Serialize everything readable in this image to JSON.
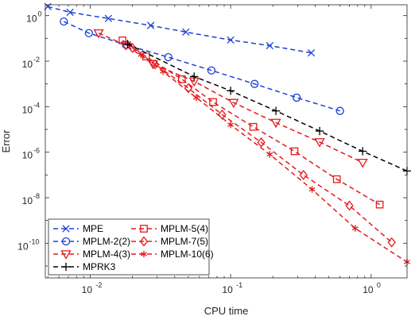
{
  "chart_data": {
    "type": "line",
    "title": "",
    "xlabel": "CPU time",
    "ylabel": "Error",
    "xscale": "log",
    "yscale": "log",
    "xlim": [
      0.0048,
      1.8
    ],
    "ylim": [
      3e-12,
      3
    ],
    "grid": false,
    "legend_position": "bottom-left",
    "legend_columns": 2,
    "x_ticks": [
      {
        "value": 0.01,
        "base": "10",
        "exp": "-2"
      },
      {
        "value": 0.1,
        "base": "10",
        "exp": "-1"
      },
      {
        "value": 1,
        "base": "10",
        "exp": "0"
      }
    ],
    "y_ticks": [
      {
        "value": 1,
        "base": "10",
        "exp": "0"
      },
      {
        "value": 0.01,
        "base": "10",
        "exp": "-2"
      },
      {
        "value": 0.0001,
        "base": "10",
        "exp": "-4"
      },
      {
        "value": 1e-06,
        "base": "10",
        "exp": "-6"
      },
      {
        "value": 1e-08,
        "base": "10",
        "exp": "-8"
      },
      {
        "value": 1e-10,
        "base": "10",
        "exp": "-10"
      }
    ],
    "series": [
      {
        "name": "MPE",
        "color": "#1f3fd6",
        "marker": "x",
        "x": [
          0.005,
          0.0072,
          0.0135,
          0.027,
          0.048,
          0.1,
          0.19,
          0.375
        ],
        "y": [
          2.5,
          1.4,
          0.75,
          0.37,
          0.19,
          0.085,
          0.048,
          0.023
        ]
      },
      {
        "name": "MPLM-2(2)",
        "color": "#1f3fd6",
        "marker": "circle",
        "x": [
          0.0065,
          0.0098,
          0.018,
          0.036,
          0.073,
          0.148,
          0.295,
          0.6
        ],
        "y": [
          0.55,
          0.17,
          0.052,
          0.015,
          0.0039,
          0.001,
          0.00025,
          6.5e-05
        ]
      },
      {
        "name": "MPLM-4(3)",
        "color": "#e41a1c",
        "marker": "triangle-down",
        "x": [
          0.0115,
          0.018,
          0.028,
          0.055,
          0.105,
          0.21,
          0.43,
          0.87
        ],
        "y": [
          0.17,
          0.05,
          0.0075,
          0.0013,
          0.00015,
          2e-05,
          2.8e-06,
          3.5e-07
        ]
      },
      {
        "name": "MPLM-5(4)",
        "color": "#e41a1c",
        "marker": "square",
        "x": [
          0.017,
          0.025,
          0.045,
          0.075,
          0.145,
          0.285,
          0.57,
          1.15
        ],
        "y": [
          0.082,
          0.016,
          0.0016,
          0.00016,
          1.3e-05,
          1.1e-06,
          6.5e-08,
          5e-09
        ]
      },
      {
        "name": "MPLM-7(5)",
        "color": "#e41a1c",
        "marker": "diamond",
        "x": [
          0.02,
          0.029,
          0.05,
          0.087,
          0.165,
          0.33,
          0.7,
          1.4
        ],
        "y": [
          0.038,
          0.0073,
          0.00065,
          4.5e-05,
          2.7e-06,
          1e-07,
          4.5e-09,
          1.1e-10
        ]
      },
      {
        "name": "MPLM-10(6)",
        "color": "#e41a1c",
        "marker": "asterisk",
        "x": [
          0.023,
          0.033,
          0.057,
          0.1,
          0.19,
          0.38,
          0.77,
          1.8
        ],
        "y": [
          0.019,
          0.0035,
          0.00025,
          1.6e-05,
          8e-07,
          2.3e-08,
          4.5e-10,
          1.5e-11
        ]
      },
      {
        "name": "MPRK3",
        "color": "#000000",
        "marker": "plus",
        "x": [
          0.0185,
          0.055,
          0.1,
          0.21,
          0.43,
          0.87,
          1.8
        ],
        "y": [
          0.057,
          0.0021,
          0.0005,
          6.5e-05,
          8.5e-06,
          1.1e-06,
          1.5e-07
        ]
      }
    ]
  }
}
